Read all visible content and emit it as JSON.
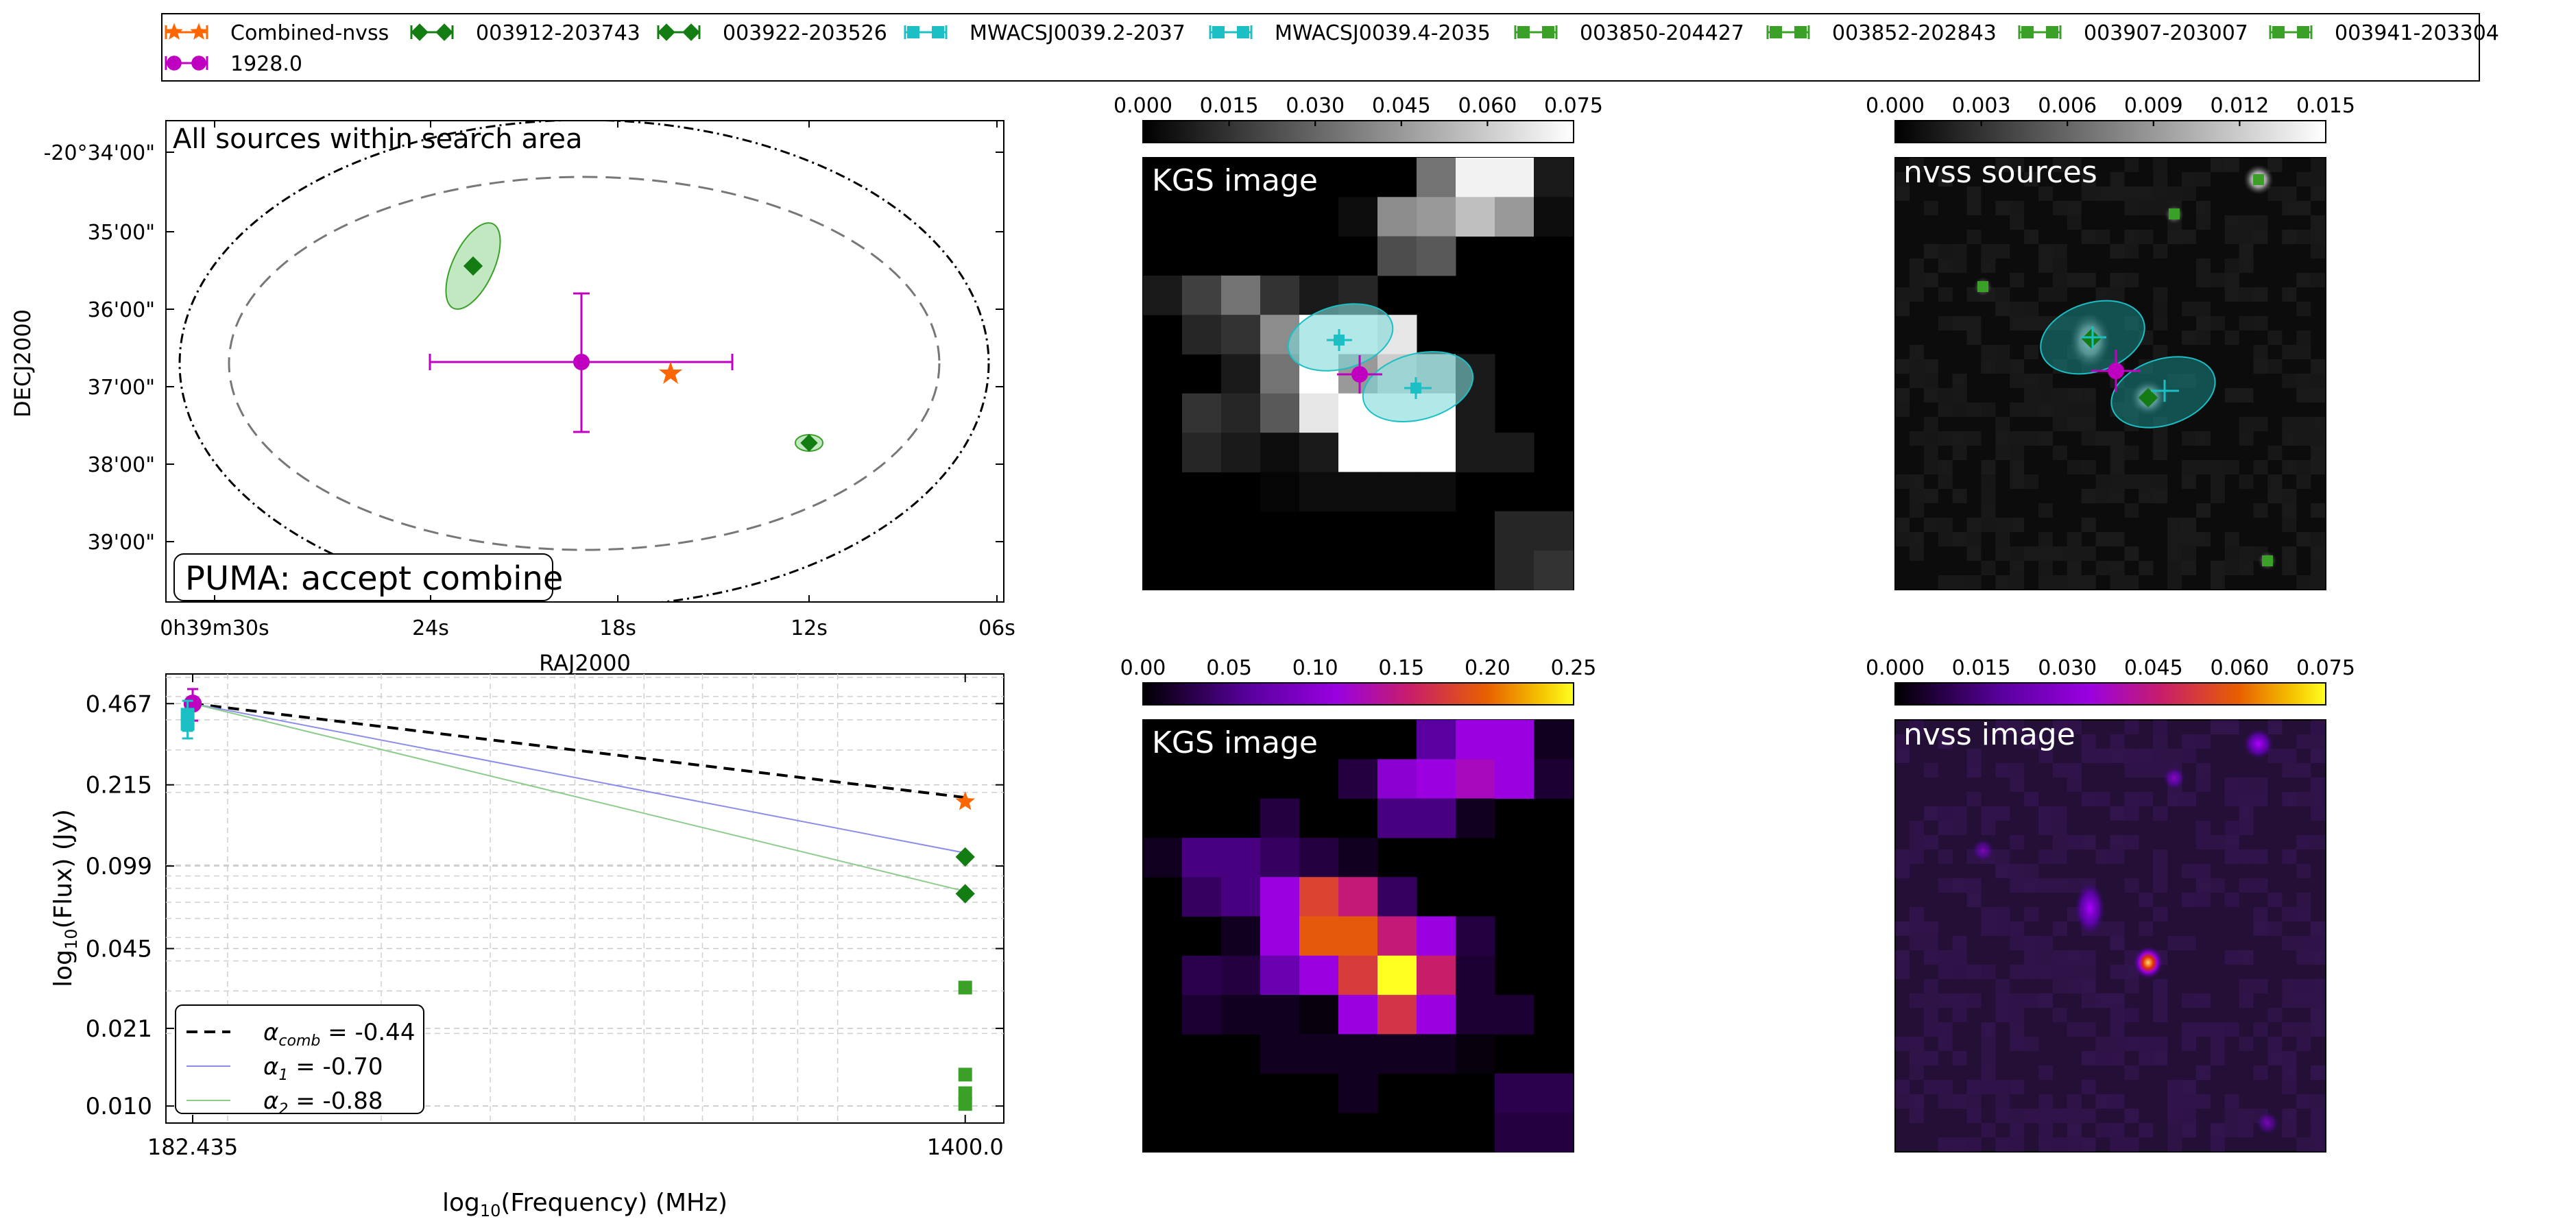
{
  "legend": {
    "entries": [
      {
        "label": "Combined-nvss",
        "color": "#ff6600",
        "marker": "star"
      },
      {
        "label": "003912-203743",
        "color": "#137c13",
        "marker": "diamond"
      },
      {
        "label": "003922-203526",
        "color": "#137c13",
        "marker": "diamond"
      },
      {
        "label": "MWACSJ0039.2-2037",
        "color": "#1bbfc4",
        "marker": "square"
      },
      {
        "label": "MWACSJ0039.4-2035",
        "color": "#1bbfc4",
        "marker": "square"
      },
      {
        "label": "003850-204427",
        "color": "#3aa028",
        "marker": "square"
      },
      {
        "label": "003852-202843",
        "color": "#3aa028",
        "marker": "square"
      },
      {
        "label": "003907-203007",
        "color": "#3aa028",
        "marker": "square"
      },
      {
        "label": "003941-203304",
        "color": "#3aa028",
        "marker": "square"
      },
      {
        "label": "1928.0",
        "color": "#c000c0",
        "marker": "circle"
      }
    ]
  },
  "sky_panel": {
    "title": "All sources within search area",
    "badge": "PUMA: accept combine",
    "xlabel": "RAJ2000",
    "ylabel": "DECJ2000",
    "xticks": [
      "0h39m30s",
      "24s",
      "18s",
      "12s",
      "06s"
    ],
    "yticks": [
      "-20°34'00\"",
      "35'00\"",
      "36'00\"",
      "37'00\"",
      "38'00\"",
      "39'00\""
    ]
  },
  "image_panels": {
    "kgs_gray": {
      "title": "KGS image",
      "cbar_ticks": [
        "0.000",
        "0.015",
        "0.030",
        "0.045",
        "0.060",
        "0.075"
      ]
    },
    "nvss_gray": {
      "title": "nvss sources",
      "cbar_ticks": [
        "0.000",
        "0.003",
        "0.006",
        "0.009",
        "0.012",
        "0.015"
      ]
    },
    "kgs_color": {
      "title": "KGS image",
      "cbar_ticks": [
        "0.00",
        "0.05",
        "0.10",
        "0.15",
        "0.20",
        "0.25"
      ]
    },
    "nvss_color": {
      "title": "nvss image",
      "cbar_ticks": [
        "0.000",
        "0.015",
        "0.030",
        "0.045",
        "0.060",
        "0.075"
      ]
    }
  },
  "chart_data": {
    "type": "scatter",
    "xlabel": "log10(Frequency) (MHz)",
    "ylabel": "log10(Flux) (Jy)",
    "x_scale": "log",
    "y_scale": "log",
    "xlim": [
      170,
      1550
    ],
    "ylim": [
      0.0085,
      0.62
    ],
    "xtick_labels": [
      "182.435",
      "1400.0"
    ],
    "ytick_labels": [
      "0.467",
      "0.215",
      "0.099",
      "0.045",
      "0.021",
      "0.010"
    ],
    "series": [
      {
        "name": "1928.0",
        "color": "#c000c0",
        "marker": "circle",
        "points": [
          {
            "x": 182.435,
            "y": 0.467,
            "yerr": 0.07
          }
        ]
      },
      {
        "name": "MWACSJ0039.2-2037",
        "color": "#1bbfc4",
        "marker": "square",
        "points": [
          {
            "x": 180,
            "y": 0.42,
            "yerr": 0.06
          }
        ]
      },
      {
        "name": "MWACSJ0039.4-2035",
        "color": "#1bbfc4",
        "marker": "square",
        "points": [
          {
            "x": 180,
            "y": 0.385,
            "yerr": 0.05
          }
        ]
      },
      {
        "name": "Combined-nvss",
        "color": "#ff6600",
        "marker": "star",
        "points": [
          {
            "x": 1400,
            "y": 0.183
          }
        ]
      },
      {
        "name": "003912-203743",
        "color": "#137c13",
        "marker": "diamond",
        "points": [
          {
            "x": 1400,
            "y": 0.108
          }
        ]
      },
      {
        "name": "003922-203526",
        "color": "#137c13",
        "marker": "diamond",
        "points": [
          {
            "x": 1400,
            "y": 0.076
          }
        ]
      },
      {
        "name": "003850-204427",
        "color": "#3aa028",
        "marker": "square",
        "points": [
          {
            "x": 1400,
            "y": 0.031
          }
        ]
      },
      {
        "name": "003852-202843",
        "color": "#3aa028",
        "marker": "square",
        "points": [
          {
            "x": 1400,
            "y": 0.0135
          }
        ]
      },
      {
        "name": "003907-203007",
        "color": "#3aa028",
        "marker": "square",
        "points": [
          {
            "x": 1400,
            "y": 0.0113
          }
        ]
      },
      {
        "name": "003941-203304",
        "color": "#3aa028",
        "marker": "square",
        "points": [
          {
            "x": 1400,
            "y": 0.0102
          }
        ]
      }
    ],
    "fits": [
      {
        "label": "α_comb = -0.44",
        "sub": "comb",
        "value": "= -0.44",
        "color": "#000000",
        "style": "dashed",
        "alpha": -0.44,
        "anchor": {
          "x": 182.435,
          "y": 0.467
        }
      },
      {
        "label": "α_1 = -0.70",
        "sub": "1",
        "value": "= -0.70",
        "color": "#8c8cea",
        "style": "solid",
        "alpha": -0.7,
        "anchor": {
          "x": 182.435,
          "y": 0.467
        }
      },
      {
        "label": "α_2 = -0.88",
        "sub": "2",
        "value": "= -0.88",
        "color": "#8ccc8c",
        "style": "solid",
        "alpha": -0.88,
        "anchor": {
          "x": 182.435,
          "y": 0.467
        }
      }
    ],
    "legend_position": "lower-left",
    "grid": true
  }
}
